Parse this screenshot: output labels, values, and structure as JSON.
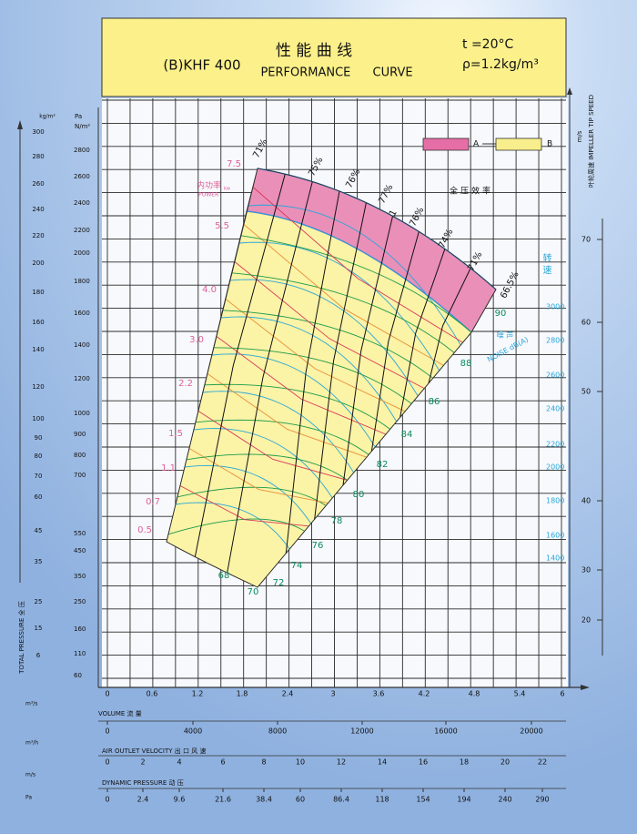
{
  "header": {
    "model": "(B)KHF 400",
    "title_cn": "性 能 曲 线",
    "title_en": "PERFORMANCE CURVE",
    "temperature": "t =20°C",
    "density": "ρ=1.2kg/m³"
  },
  "left_axis": {
    "kg_unit": "kg/m²",
    "pa_unit": "Pa",
    "pa_unit2": "N/m²",
    "title": "TOTAL PRESSURE 全 压",
    "kg_ticks": [
      300,
      280,
      260,
      240,
      220,
      200,
      180,
      160,
      140,
      120,
      100,
      90,
      80,
      70,
      60,
      45,
      35,
      25,
      15,
      6
    ],
    "pa_ticks": [
      2800,
      2600,
      2400,
      2200,
      2000,
      1800,
      1600,
      1400,
      1200,
      1000,
      900,
      800,
      700,
      550,
      450,
      350,
      250,
      160,
      110,
      60
    ]
  },
  "right_axis": {
    "title": "叶轮周速 IMPELLER TIP SPEED",
    "unit": "m/s",
    "ticks": [
      70,
      60,
      50,
      40,
      30,
      20
    ],
    "speed_title": "转 速",
    "rpm_ticks": [
      3000,
      2800,
      2600,
      2400,
      2200,
      2000,
      1800,
      1600,
      1400
    ]
  },
  "bottom": {
    "volume_unit": "m³/s",
    "volume_title": "VOLUME 流 量",
    "volume_ticks": [
      0,
      0.6,
      1.2,
      1.8,
      2.4,
      3,
      3.6,
      4.2,
      4.8,
      5.4,
      6
    ],
    "flow_unit": "m³/h",
    "velocity_title": "AIR OUTLET VELOCITY 出 口 风 速",
    "flow_ticks": [
      0,
      4000,
      8000,
      12000,
      16000,
      20000
    ],
    "velocity_unit": "m/s",
    "dynamic_title": "DYNAMIC PRESSURE 动 压",
    "velocity_ticks": [
      0,
      2,
      4,
      6,
      8,
      10,
      12,
      14,
      16,
      18,
      20,
      22
    ],
    "pressure_unit": "Pa",
    "pressure_ticks": [
      0,
      2.4,
      9.6,
      21.6,
      38.4,
      60,
      86.4,
      118,
      154,
      194,
      240,
      290
    ]
  },
  "legend": [
    "A",
    "B"
  ],
  "power": {
    "title": "内功率",
    "unit": "kw",
    "title_en": "POWER",
    "labels": [
      "7.5",
      "5.5",
      "4.0",
      "3.0",
      "2.2",
      "1.5",
      "1.1",
      "0.7",
      "0.5"
    ]
  },
  "efficiency": {
    "title": "全压效率",
    "labels": [
      "71%",
      "75%",
      "76%",
      "77%",
      "1",
      "76%",
      "74%",
      "71%",
      "66.5%"
    ]
  },
  "noise": {
    "title": "噪 声",
    "title_en": "NOISE dB(A)",
    "labels": [
      90,
      88,
      86,
      84,
      82,
      80,
      78,
      76,
      74,
      72,
      70,
      68
    ]
  }
}
